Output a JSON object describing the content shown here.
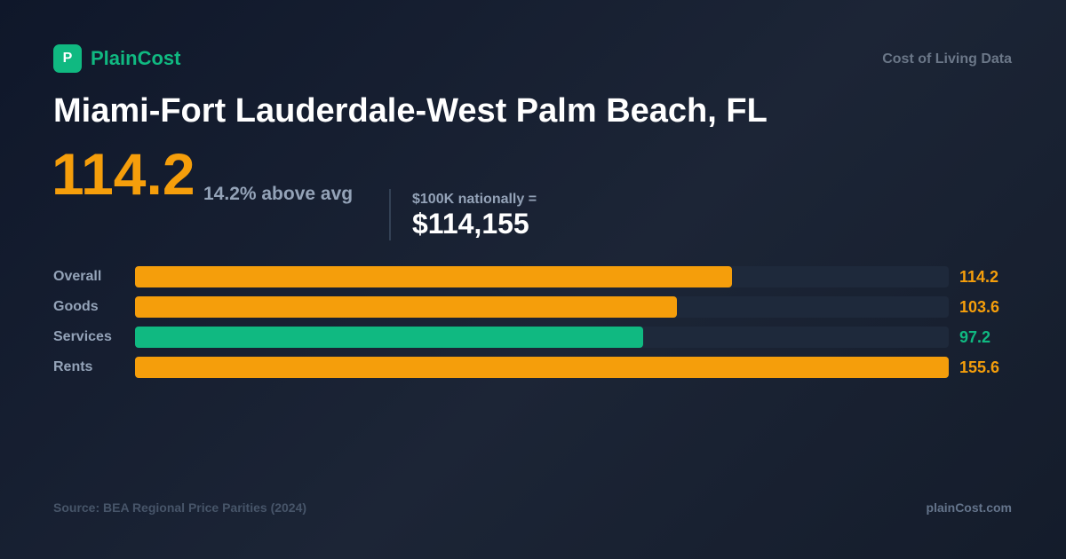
{
  "brand": {
    "logo_letter": "P",
    "name": "PlainCost",
    "tagline": "Cost of Living Data",
    "accent": "#10b981"
  },
  "title": "Miami-Fort Lauderdale-West Palm Beach, FL",
  "summary": {
    "index": "114.2",
    "comparison": "14.2% above avg",
    "equivalent_label": "$100K nationally =",
    "equivalent_value": "$114,155"
  },
  "chart_data": {
    "type": "bar",
    "orientation": "horizontal",
    "categories": [
      "Overall",
      "Goods",
      "Services",
      "Rents"
    ],
    "values": [
      114.2,
      103.6,
      97.2,
      155.6
    ],
    "value_labels": [
      "114.2",
      "103.6",
      "97.2",
      "155.6"
    ],
    "xlim": [
      0,
      155.6
    ],
    "colors": [
      "#f59e0b",
      "#f59e0b",
      "#10b981",
      "#f59e0b"
    ],
    "title": "",
    "xlabel": "",
    "ylabel": "",
    "grid": false
  },
  "footer": {
    "source": "Source: BEA Regional Price Parities (2024)",
    "site": "plainCost.com"
  }
}
